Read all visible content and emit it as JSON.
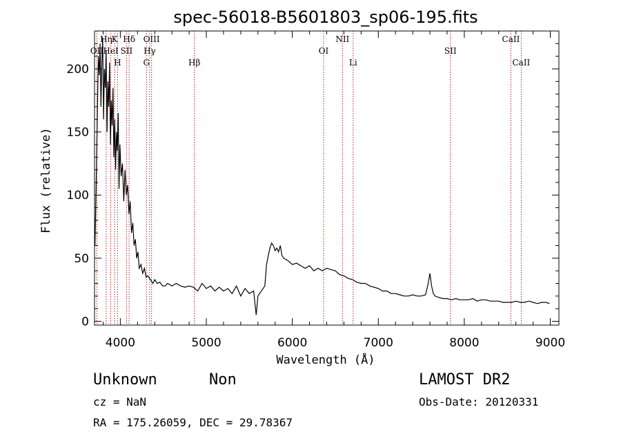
{
  "chart_data": {
    "type": "line",
    "title": "spec-56018-B5601803_sp06-195.fits",
    "xlabel": "Wavelength (Å)",
    "ylabel": "Flux (relative)",
    "xlim": [
      3700,
      9100
    ],
    "ylim": [
      -3,
      230
    ],
    "x_ticks": [
      4000,
      5000,
      6000,
      7000,
      8000,
      9000
    ],
    "y_ticks": [
      0,
      50,
      100,
      150,
      200
    ],
    "grid": false,
    "line_color": "#000000",
    "marker_color": "#b22222",
    "spectral_lines": [
      {
        "label": "OII",
        "wavelength": 3727,
        "row": 2
      },
      {
        "label": "Hη",
        "wavelength": 3835,
        "row": 1
      },
      {
        "label": "HeI",
        "wavelength": 3889,
        "row": 2
      },
      {
        "label": "K",
        "wavelength": 3934,
        "row": 1
      },
      {
        "label": "H",
        "wavelength": 3968,
        "row": 3
      },
      {
        "label": "SII",
        "wavelength": 4072,
        "row": 2
      },
      {
        "label": "Hδ",
        "wavelength": 4102,
        "row": 1
      },
      {
        "label": "G",
        "wavelength": 4304,
        "row": 3
      },
      {
        "label": "Hγ",
        "wavelength": 4341,
        "row": 2
      },
      {
        "label": "OIII",
        "wavelength": 4363,
        "row": 1
      },
      {
        "label": "Hβ",
        "wavelength": 4861,
        "row": 3
      },
      {
        "label": "OI",
        "wavelength": 6364,
        "row": 2
      },
      {
        "label": "NII",
        "wavelength": 6583,
        "row": 1
      },
      {
        "label": "Li",
        "wavelength": 6707,
        "row": 3
      },
      {
        "label": "SII",
        "wavelength": 7838,
        "row": 2
      },
      {
        "label": "CaII",
        "wavelength": 8542,
        "row": 1
      },
      {
        "label": "CaII",
        "wavelength": 8662,
        "row": 3
      }
    ],
    "series": [
      {
        "x": [
          3705,
          3715,
          3725,
          3735,
          3745,
          3755,
          3765,
          3775,
          3785,
          3795,
          3805,
          3815,
          3825,
          3835,
          3845,
          3855,
          3865,
          3875,
          3885,
          3895,
          3905,
          3915,
          3925,
          3935,
          3945,
          3955,
          3965,
          3975,
          3985,
          3995,
          4010,
          4025,
          4040,
          4055,
          4070,
          4085,
          4100,
          4115,
          4130,
          4145,
          4160,
          4175,
          4190,
          4205,
          4220,
          4240,
          4260,
          4280,
          4300,
          4320,
          4340,
          4360,
          4380,
          4400,
          4430,
          4460,
          4490,
          4520,
          4550,
          4600,
          4650,
          4700,
          4750,
          4800,
          4850,
          4900,
          4950,
          5000,
          5050,
          5100,
          5150,
          5200,
          5250,
          5300,
          5350,
          5400,
          5450,
          5500,
          5550,
          5580,
          5600,
          5620,
          5650,
          5680,
          5700,
          5720,
          5740,
          5760,
          5780,
          5800,
          5820,
          5840,
          5860,
          5880,
          5900,
          5950,
          6000,
          6050,
          6100,
          6150,
          6200,
          6250,
          6300,
          6350,
          6400,
          6450,
          6500,
          6550,
          6600,
          6650,
          6700,
          6750,
          6800,
          6850,
          6900,
          6950,
          7000,
          7050,
          7100,
          7150,
          7200,
          7250,
          7300,
          7350,
          7400,
          7450,
          7500,
          7550,
          7580,
          7600,
          7620,
          7640,
          7660,
          7700,
          7750,
          7800,
          7850,
          7900,
          7950,
          8000,
          8050,
          8100,
          8150,
          8200,
          8250,
          8300,
          8350,
          8400,
          8450,
          8500,
          8550,
          8600,
          8650,
          8700,
          8750,
          8800,
          8850,
          8900,
          8950,
          8990
        ],
        "y": [
          60,
          95,
          130,
          175,
          210,
          195,
          220,
          170,
          205,
          225,
          160,
          200,
          185,
          215,
          150,
          190,
          170,
          205,
          140,
          175,
          155,
          185,
          130,
          160,
          120,
          150,
          135,
          165,
          105,
          140,
          115,
          125,
          95,
          120,
          100,
          108,
          85,
          95,
          70,
          78,
          60,
          65,
          50,
          55,
          42,
          45,
          38,
          42,
          35,
          36,
          34,
          32,
          30,
          33,
          30,
          31,
          28,
          28,
          30,
          28,
          30,
          28,
          27,
          28,
          27,
          24,
          30,
          26,
          28,
          24,
          27,
          24,
          26,
          22,
          28,
          20,
          26,
          22,
          24,
          5,
          20,
          22,
          25,
          28,
          45,
          52,
          58,
          62,
          60,
          56,
          58,
          55,
          60,
          52,
          50,
          48,
          45,
          46,
          44,
          42,
          44,
          40,
          42,
          40,
          42,
          41,
          40,
          37,
          36,
          34,
          33,
          31,
          30,
          30,
          28,
          27,
          26,
          24,
          24,
          22,
          22,
          21,
          20,
          20,
          21,
          20,
          20,
          21,
          30,
          38,
          28,
          22,
          20,
          19,
          18,
          18,
          17,
          18,
          17,
          17,
          17,
          18,
          16,
          17,
          17,
          16,
          16,
          16,
          15,
          15,
          15,
          16,
          15,
          15,
          16,
          15,
          14,
          15,
          15,
          14
        ]
      }
    ]
  },
  "footer": {
    "object_class": "Unknown",
    "subclass": "Non",
    "survey": "LAMOST DR2",
    "cz": "cz = NaN",
    "obs_date": "Obs-Date: 20120331",
    "radec": "RA = 175.26059, DEC =  29.78367"
  }
}
